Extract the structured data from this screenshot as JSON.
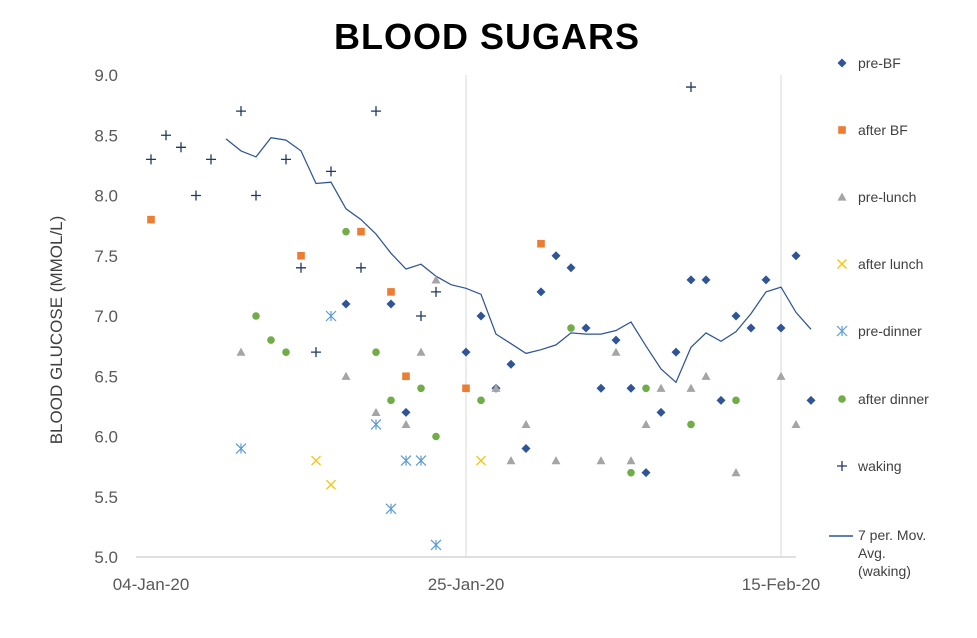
{
  "chart_data": {
    "type": "scatter",
    "title": "BLOOD SUGARS",
    "xlabel": "",
    "ylabel": "BLOOD GLUCOSE (MMOL/L)",
    "x_start": "2020-01-03",
    "x_tick_labels": [
      {
        "day": 1,
        "label": "04-Jan-20"
      },
      {
        "day": 22,
        "label": "25-Jan-20"
      },
      {
        "day": 43,
        "label": "15-Feb-20"
      }
    ],
    "xlim": [
      0,
      44.2
    ],
    "ylim": [
      5.0,
      9.0
    ],
    "y_ticks": [
      "5.0",
      "5.5",
      "6.0",
      "6.5",
      "7.0",
      "7.5",
      "8.0",
      "8.5",
      "9.0"
    ],
    "gridlines": "major vertical and horizontal-axis only",
    "legend_position": "right",
    "colors": {
      "pre-BF": "#2F5597",
      "after BF": "#ED7D31",
      "pre-lunch": "#A5A5A5",
      "after lunch": "#FFC000",
      "pre-dinner": "#5B9BD5",
      "after dinner": "#70AD47",
      "waking": "#203864",
      "moving-average": "#2F5597",
      "grid": "#D9D9D9",
      "axis": "#BFBFBF"
    },
    "series": [
      {
        "name": "pre-BF",
        "marker": "diamond",
        "points": [
          [
            14,
            7.1
          ],
          [
            17,
            7.1
          ],
          [
            18,
            6.2
          ],
          [
            22,
            6.7
          ],
          [
            23,
            7.0
          ],
          [
            24,
            6.4
          ],
          [
            25,
            6.6
          ],
          [
            26,
            5.9
          ],
          [
            27,
            7.2
          ],
          [
            28,
            7.5
          ],
          [
            29,
            7.4
          ],
          [
            30,
            6.9
          ],
          [
            31,
            6.4
          ],
          [
            32,
            6.8
          ],
          [
            33,
            6.4
          ],
          [
            34,
            5.7
          ],
          [
            35,
            6.2
          ],
          [
            36,
            6.7
          ],
          [
            37,
            7.3
          ],
          [
            38,
            7.3
          ],
          [
            39,
            6.3
          ],
          [
            40,
            7.0
          ],
          [
            41,
            6.9
          ],
          [
            42,
            7.3
          ],
          [
            43,
            6.9
          ],
          [
            44,
            7.5
          ],
          [
            45,
            6.3
          ]
        ]
      },
      {
        "name": "after BF",
        "marker": "square",
        "points": [
          [
            1,
            7.8
          ],
          [
            11,
            7.5
          ],
          [
            15,
            7.7
          ],
          [
            17,
            7.2
          ],
          [
            18,
            6.5
          ],
          [
            22,
            6.4
          ],
          [
            27,
            7.6
          ]
        ]
      },
      {
        "name": "pre-lunch",
        "marker": "triangle",
        "points": [
          [
            7,
            6.7
          ],
          [
            14,
            6.5
          ],
          [
            16,
            6.2
          ],
          [
            18,
            6.1
          ],
          [
            19,
            6.7
          ],
          [
            20,
            7.3
          ],
          [
            24,
            6.4
          ],
          [
            25,
            5.8
          ],
          [
            26,
            6.1
          ],
          [
            28,
            5.8
          ],
          [
            31,
            5.8
          ],
          [
            32,
            6.7
          ],
          [
            33,
            5.8
          ],
          [
            34,
            6.1
          ],
          [
            35,
            6.4
          ],
          [
            37,
            6.4
          ],
          [
            38,
            6.5
          ],
          [
            40,
            5.7
          ],
          [
            43,
            6.5
          ],
          [
            44,
            6.1
          ]
        ]
      },
      {
        "name": "after lunch",
        "marker": "x",
        "points": [
          [
            12,
            5.8
          ],
          [
            13,
            5.6
          ],
          [
            23,
            5.8
          ]
        ]
      },
      {
        "name": "pre-dinner",
        "marker": "asterisk",
        "points": [
          [
            7,
            5.9
          ],
          [
            13,
            7.0
          ],
          [
            16,
            6.1
          ],
          [
            17,
            5.4
          ],
          [
            18,
            5.8
          ],
          [
            19,
            5.8
          ],
          [
            20,
            5.1
          ]
        ]
      },
      {
        "name": "after dinner",
        "marker": "circle",
        "points": [
          [
            8,
            7.0
          ],
          [
            9,
            6.8
          ],
          [
            10,
            6.7
          ],
          [
            14,
            7.7
          ],
          [
            16,
            6.7
          ],
          [
            17,
            6.3
          ],
          [
            19,
            6.4
          ],
          [
            20,
            6.0
          ],
          [
            23,
            6.3
          ],
          [
            29,
            6.9
          ],
          [
            33,
            5.7
          ],
          [
            34,
            6.4
          ],
          [
            37,
            6.1
          ],
          [
            40,
            6.3
          ]
        ]
      },
      {
        "name": "waking",
        "marker": "plus",
        "points": [
          [
            1,
            8.3
          ],
          [
            2,
            8.5
          ],
          [
            3,
            8.4
          ],
          [
            4,
            8.0
          ],
          [
            5,
            8.3
          ],
          [
            7,
            8.7
          ],
          [
            8,
            8.0
          ],
          [
            10,
            8.3
          ],
          [
            11,
            7.4
          ],
          [
            12,
            6.7
          ],
          [
            13,
            8.2
          ],
          [
            15,
            7.4
          ],
          [
            16,
            8.7
          ],
          [
            19,
            7.0
          ],
          [
            20,
            7.2
          ],
          [
            37,
            8.9
          ]
        ]
      }
    ],
    "trendline": {
      "name": "7 per. Mov. Avg. (waking)",
      "legend_lines": [
        "7 per. Mov.",
        "Avg.",
        "(waking)"
      ],
      "points": [
        [
          6,
          8.47
        ],
        [
          7,
          8.37
        ],
        [
          8,
          8.32
        ],
        [
          9,
          8.48
        ],
        [
          10,
          8.46
        ],
        [
          11,
          8.37
        ],
        [
          12,
          8.1
        ],
        [
          13,
          8.11
        ],
        [
          14,
          7.89
        ],
        [
          15,
          7.8
        ],
        [
          16,
          7.68
        ],
        [
          17,
          7.52
        ],
        [
          18,
          7.39
        ],
        [
          19,
          7.43
        ],
        [
          20,
          7.33
        ],
        [
          21,
          7.26
        ],
        [
          22,
          7.23
        ],
        [
          23,
          7.18
        ],
        [
          24,
          6.85
        ],
        [
          25,
          6.77
        ],
        [
          26,
          6.69
        ],
        [
          27,
          6.72
        ],
        [
          28,
          6.76
        ],
        [
          29,
          6.86
        ],
        [
          30,
          6.85
        ],
        [
          31,
          6.85
        ],
        [
          32,
          6.88
        ],
        [
          33,
          6.95
        ],
        [
          34,
          6.75
        ],
        [
          35,
          6.56
        ],
        [
          36,
          6.45
        ],
        [
          37,
          6.74
        ],
        [
          38,
          6.86
        ],
        [
          39,
          6.79
        ],
        [
          40,
          6.87
        ],
        [
          41,
          7.02
        ],
        [
          42,
          7.2
        ],
        [
          43,
          7.24
        ],
        [
          44,
          7.03
        ],
        [
          45,
          6.89
        ]
      ]
    }
  }
}
